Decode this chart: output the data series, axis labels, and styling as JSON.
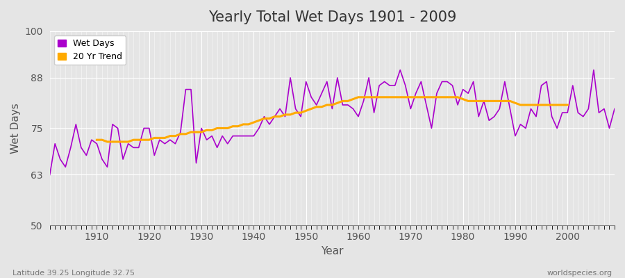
{
  "title": "Yearly Total Wet Days 1901 - 2009",
  "xlabel": "Year",
  "ylabel": "Wet Days",
  "subtitle_left": "Latitude 39.25 Longitude 32.75",
  "subtitle_right": "worldspecies.org",
  "ylim": [
    50,
    100
  ],
  "yticks": [
    50,
    63,
    75,
    88,
    100
  ],
  "xlim": [
    1901,
    2009
  ],
  "xticks": [
    1910,
    1920,
    1930,
    1940,
    1950,
    1960,
    1970,
    1980,
    1990,
    2000
  ],
  "bg_color": "#e5e5e5",
  "line_color": "#aa00cc",
  "trend_color": "#ffaa00",
  "legend_entries": [
    "Wet Days",
    "20 Yr Trend"
  ],
  "years": [
    1901,
    1902,
    1903,
    1904,
    1905,
    1906,
    1907,
    1908,
    1909,
    1910,
    1911,
    1912,
    1913,
    1914,
    1915,
    1916,
    1917,
    1918,
    1919,
    1920,
    1921,
    1922,
    1923,
    1924,
    1925,
    1926,
    1927,
    1928,
    1929,
    1930,
    1931,
    1932,
    1933,
    1934,
    1935,
    1936,
    1937,
    1938,
    1939,
    1940,
    1941,
    1942,
    1943,
    1944,
    1945,
    1946,
    1947,
    1948,
    1949,
    1950,
    1951,
    1952,
    1953,
    1954,
    1955,
    1956,
    1957,
    1958,
    1959,
    1960,
    1961,
    1962,
    1963,
    1964,
    1965,
    1966,
    1967,
    1968,
    1969,
    1970,
    1971,
    1972,
    1973,
    1974,
    1975,
    1976,
    1977,
    1978,
    1979,
    1980,
    1981,
    1982,
    1983,
    1984,
    1985,
    1986,
    1987,
    1988,
    1989,
    1990,
    1991,
    1992,
    1993,
    1994,
    1995,
    1996,
    1997,
    1998,
    1999,
    2000,
    2001,
    2002,
    2003,
    2004,
    2005,
    2006,
    2007,
    2008,
    2009
  ],
  "wet_days": [
    63,
    71,
    67,
    65,
    70,
    76,
    70,
    68,
    72,
    71,
    67,
    65,
    76,
    75,
    67,
    71,
    70,
    70,
    75,
    75,
    68,
    72,
    71,
    72,
    71,
    74,
    85,
    85,
    66,
    75,
    72,
    73,
    70,
    73,
    71,
    73,
    73,
    73,
    73,
    73,
    75,
    78,
    76,
    78,
    80,
    78,
    88,
    80,
    78,
    87,
    83,
    81,
    84,
    87,
    80,
    88,
    81,
    81,
    80,
    78,
    82,
    88,
    79,
    86,
    87,
    86,
    86,
    90,
    86,
    80,
    84,
    87,
    81,
    75,
    84,
    87,
    87,
    86,
    81,
    85,
    84,
    87,
    78,
    82,
    77,
    78,
    80,
    87,
    80,
    73,
    76,
    75,
    80,
    78,
    86,
    87,
    78,
    75,
    79,
    79,
    86,
    79,
    78,
    80,
    90,
    79,
    80,
    75,
    80
  ],
  "trend_years": [
    1910,
    1911,
    1912,
    1913,
    1914,
    1915,
    1916,
    1917,
    1918,
    1919,
    1920,
    1921,
    1922,
    1923,
    1924,
    1925,
    1926,
    1927,
    1928,
    1929,
    1930,
    1931,
    1932,
    1933,
    1934,
    1935,
    1936,
    1937,
    1938,
    1939,
    1940,
    1941,
    1942,
    1943,
    1944,
    1945,
    1946,
    1947,
    1948,
    1949,
    1950,
    1951,
    1952,
    1953,
    1954,
    1955,
    1956,
    1957,
    1958,
    1959,
    1960,
    1961,
    1962,
    1963,
    1964,
    1965,
    1966,
    1967,
    1968,
    1969,
    1970,
    1971,
    1972,
    1973,
    1974,
    1975,
    1976,
    1977,
    1978,
    1979,
    1980,
    1981,
    1982,
    1983,
    1984,
    1985,
    1986,
    1987,
    1988,
    1989,
    1990,
    1991,
    1992,
    1993,
    1994,
    1995,
    1996,
    1997,
    1998,
    1999,
    2000
  ],
  "trend_values": [
    72.0,
    72.0,
    71.5,
    71.5,
    71.5,
    71.5,
    71.5,
    72.0,
    72.0,
    72.0,
    72.0,
    72.5,
    72.5,
    72.5,
    73.0,
    73.0,
    73.5,
    73.5,
    74.0,
    74.0,
    74.0,
    74.5,
    74.5,
    75.0,
    75.0,
    75.0,
    75.5,
    75.5,
    76.0,
    76.0,
    76.5,
    77.0,
    77.5,
    77.5,
    78.0,
    78.0,
    78.5,
    78.5,
    79.0,
    79.0,
    79.5,
    80.0,
    80.5,
    80.5,
    81.0,
    81.0,
    81.5,
    82.0,
    82.0,
    82.5,
    83.0,
    83.0,
    83.0,
    83.0,
    83.0,
    83.0,
    83.0,
    83.0,
    83.0,
    83.0,
    83.0,
    83.0,
    83.0,
    83.0,
    83.0,
    83.0,
    83.0,
    83.0,
    83.0,
    83.0,
    82.5,
    82.0,
    82.0,
    82.0,
    82.0,
    82.0,
    82.0,
    82.0,
    82.0,
    82.0,
    81.5,
    81.0,
    81.0,
    81.0,
    81.0,
    81.0,
    81.0,
    81.0,
    81.0,
    81.0,
    81.0
  ]
}
